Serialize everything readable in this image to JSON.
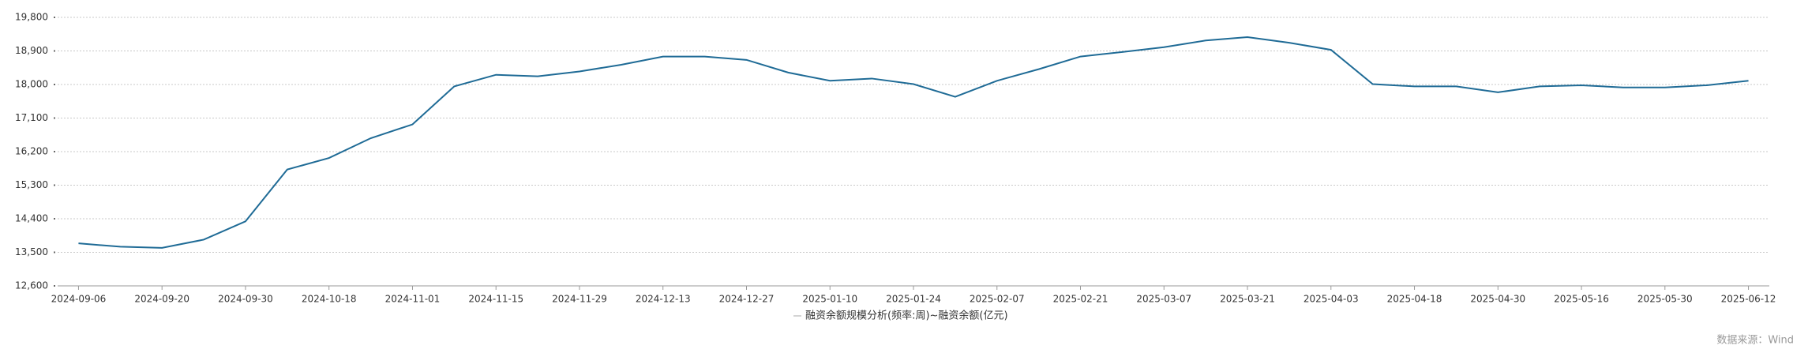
{
  "chart_data": {
    "type": "line",
    "legend": "融资余额规模分析(频率:周)~融资余额(亿元)",
    "source": "数据来源：Wind",
    "categories": [
      "2024-09-06",
      null,
      "2024-09-20",
      null,
      "2024-09-30",
      null,
      "2024-10-18",
      null,
      "2024-11-01",
      null,
      "2024-11-15",
      null,
      "2024-11-29",
      null,
      "2024-12-13",
      null,
      "2024-12-27",
      null,
      "2025-01-10",
      null,
      "2025-01-24",
      null,
      "2025-02-07",
      null,
      "2025-02-21",
      null,
      "2025-03-07",
      null,
      "2025-03-21",
      null,
      "2025-04-03",
      null,
      "2025-04-18",
      null,
      "2025-04-30",
      null,
      "2025-05-16",
      null,
      "2025-05-30",
      null,
      "2025-06-12"
    ],
    "values": [
      13740,
      13650,
      13620,
      13840,
      14330,
      15720,
      16030,
      16560,
      16930,
      17950,
      18260,
      18220,
      18350,
      18530,
      18750,
      18750,
      18660,
      18320,
      18100,
      18160,
      18010,
      17670,
      18100,
      18410,
      18750,
      18870,
      19000,
      19180,
      19270,
      19120,
      18930,
      18010,
      17950,
      17950,
      17790,
      17950,
      17980,
      17920,
      17920,
      17980,
      18100
    ],
    "color": "#1f6b96",
    "ylim": [
      12600,
      19800
    ],
    "yticks": [
      {
        "value": 12600,
        "label": "12,600"
      },
      {
        "value": 13500,
        "label": "13,500"
      },
      {
        "value": 14400,
        "label": "14,400"
      },
      {
        "value": 15300,
        "label": "15,300"
      },
      {
        "value": 16200,
        "label": "16,200"
      },
      {
        "value": 17100,
        "label": "17,100"
      },
      {
        "value": 18000,
        "label": "18,000"
      },
      {
        "value": 18900,
        "label": "18,900"
      },
      {
        "value": 19800,
        "label": "19,800"
      }
    ],
    "grid": true
  }
}
